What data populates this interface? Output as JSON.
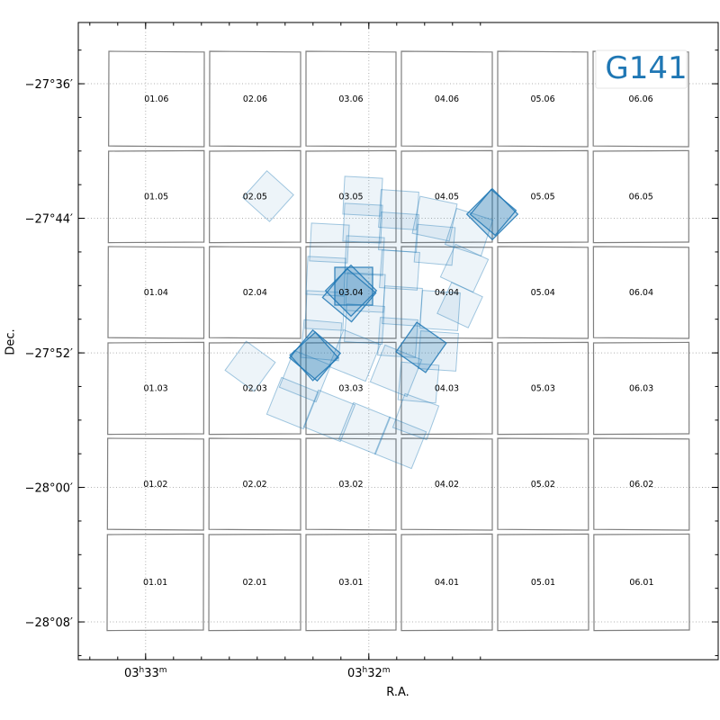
{
  "chart_data": {
    "type": "footprint-map",
    "title": "G141",
    "xlabel": "R.A.",
    "ylabel": "Dec.",
    "x_ticks": [
      {
        "value_deg": 53.25,
        "label_main": "03",
        "label_sup1": "h",
        "label_mid": "33",
        "label_sup2": "m"
      },
      {
        "value_deg": 53.0,
        "label_main": "03",
        "label_sup1": "h",
        "label_mid": "32",
        "label_sup2": "m"
      }
    ],
    "y_ticks": [
      {
        "value_deg": -27.6,
        "label": "−27°36′"
      },
      {
        "value_deg": -27.7333,
        "label": "−27°44′"
      },
      {
        "value_deg": -27.8667,
        "label": "−27°52′"
      },
      {
        "value_deg": -28.0,
        "label": "−28°00′"
      },
      {
        "value_deg": -28.1333,
        "label": "−28°08′"
      }
    ],
    "grid": true,
    "tiles": [
      {
        "label": "01.06",
        "col": 1,
        "row": 6
      },
      {
        "label": "02.06",
        "col": 2,
        "row": 6
      },
      {
        "label": "03.06",
        "col": 3,
        "row": 6
      },
      {
        "label": "04.06",
        "col": 4,
        "row": 6
      },
      {
        "label": "05.06",
        "col": 5,
        "row": 6
      },
      {
        "label": "06.06",
        "col": 6,
        "row": 6
      },
      {
        "label": "01.05",
        "col": 1,
        "row": 5
      },
      {
        "label": "02.05",
        "col": 2,
        "row": 5
      },
      {
        "label": "03.05",
        "col": 3,
        "row": 5
      },
      {
        "label": "04.05",
        "col": 4,
        "row": 5
      },
      {
        "label": "05.05",
        "col": 5,
        "row": 5
      },
      {
        "label": "06.05",
        "col": 6,
        "row": 5
      },
      {
        "label": "01.04",
        "col": 1,
        "row": 4
      },
      {
        "label": "02.04",
        "col": 2,
        "row": 4
      },
      {
        "label": "03.04",
        "col": 3,
        "row": 4
      },
      {
        "label": "04.04",
        "col": 4,
        "row": 4
      },
      {
        "label": "05.04",
        "col": 5,
        "row": 4
      },
      {
        "label": "06.04",
        "col": 6,
        "row": 4
      },
      {
        "label": "01.03",
        "col": 1,
        "row": 3
      },
      {
        "label": "02.03",
        "col": 2,
        "row": 3
      },
      {
        "label": "03.03",
        "col": 3,
        "row": 3
      },
      {
        "label": "04.03",
        "col": 4,
        "row": 3
      },
      {
        "label": "05.03",
        "col": 5,
        "row": 3
      },
      {
        "label": "06.03",
        "col": 6,
        "row": 3
      },
      {
        "label": "01.02",
        "col": 1,
        "row": 2
      },
      {
        "label": "02.02",
        "col": 2,
        "row": 2
      },
      {
        "label": "03.02",
        "col": 3,
        "row": 2
      },
      {
        "label": "04.02",
        "col": 4,
        "row": 2
      },
      {
        "label": "05.02",
        "col": 5,
        "row": 2
      },
      {
        "label": "06.02",
        "col": 6,
        "row": 2
      },
      {
        "label": "01.01",
        "col": 1,
        "row": 1
      },
      {
        "label": "02.01",
        "col": 2,
        "row": 1
      },
      {
        "label": "03.01",
        "col": 3,
        "row": 1
      },
      {
        "label": "04.01",
        "col": 4,
        "row": 1
      },
      {
        "label": "05.01",
        "col": 5,
        "row": 1
      },
      {
        "label": "06.01",
        "col": 6,
        "row": 1
      }
    ],
    "colors": {
      "tile_border": "#7f7f7f",
      "footprint": "#1f77b4",
      "grid": "#b0b0b0",
      "title": "#1f77b4"
    }
  }
}
